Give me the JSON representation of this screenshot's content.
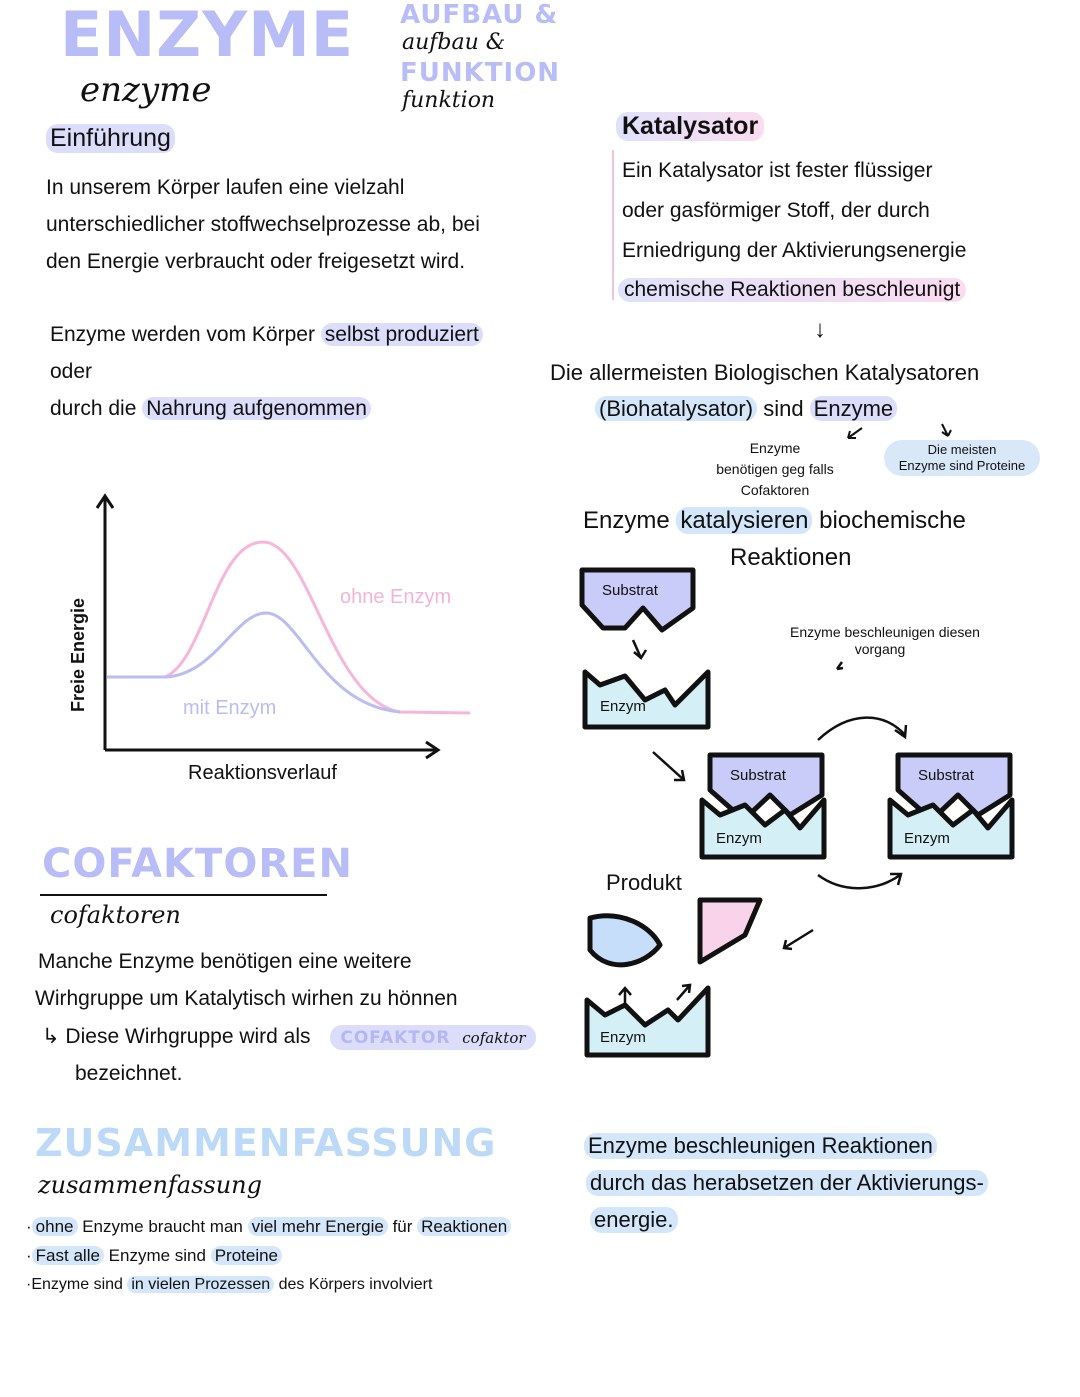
{
  "header": {
    "title_block": "ENZYME",
    "title_script": "enzyme",
    "subtitle_block_1": "AUFBAU &",
    "subtitle_block_2": "FUNKTION",
    "subtitle_script_1": "aufbau &",
    "subtitle_script_2": "funktion"
  },
  "intro": {
    "heading": "Einführung",
    "lines": [
      "In unserem Körper laufen eine vielzahl",
      "unterschiedlicher stoffwechselprozesse ab, bei",
      "den Energie verbraucht oder freigesetzt wird."
    ],
    "production": {
      "l1a": "Enzyme werden vom Körper ",
      "l1b": "selbst produziert",
      "l2": "oder",
      "l3a": "durch die ",
      "l3b": "Nahrung aufgenommen"
    }
  },
  "katalysator": {
    "heading": "Katalysator",
    "lines": [
      "Ein Katalysator ist fester flüssiger",
      "oder gasförmiger Stoff, der durch",
      "Erniedrigung der Aktivierungsenergie",
      "chemische Reaktionen beschleunigt"
    ],
    "arrow": "↓",
    "bio_line1": "Die allermeisten Biologischen Katalysatoren",
    "bio_line2a": "(Biohatalysator)",
    "bio_line2b": " sind ",
    "bio_line2c": "Enzyme",
    "note_left": [
      "Enzyme",
      "benötigen geg falls",
      "Cofaktoren"
    ],
    "note_right": [
      "Die meisten",
      "Enzyme sind Proteine"
    ],
    "catalyse_a": "Enzyme ",
    "catalyse_b": "katalysieren",
    "catalyse_c": " biochemische",
    "catalyse_d": "Reaktionen"
  },
  "energy_diagram": {
    "y_axis_label": "Freie Energie",
    "x_axis_label": "Reaktionsverlauf",
    "curve_without": "ohne Enzym",
    "curve_with": "mit Enzym",
    "color_without": "#f7b6d9",
    "color_with": "#b9bdf2"
  },
  "mechanism": {
    "substrate": "Substrat",
    "enzyme": "Enzym",
    "product": "Produkt",
    "note": [
      "Enzyme beschleunigen diesen",
      "vorgang"
    ],
    "substrate_color": "#c9cbf8",
    "enzyme_color": "#d4f0f6",
    "product_blue": "#c7defa",
    "product_pink": "#f8d3ea"
  },
  "cofaktoren": {
    "heading_block": "COFAKTOREN",
    "heading_script": "cofaktoren",
    "lines": [
      "Manche Enzyme benötigen eine weitere",
      "Wirhgruppe um Katalytisch wirhen zu hönnen",
      "↳ Diese Wirhgruppe wird als",
      "bezeichnet."
    ],
    "term_block": "COFAKTOR",
    "term_script": "cofaktor"
  },
  "summary": {
    "heading_block": "ZUSAMMENFASSUNG",
    "heading_script": "zusammenfassung",
    "b1": [
      "·",
      "ohne",
      " Enzyme braucht man ",
      "viel mehr Energie",
      " für ",
      "Reaktionen"
    ],
    "b2": [
      "·",
      "Fast alle",
      " Enzyme sind ",
      "Proteine"
    ],
    "b3": [
      "·",
      "Enzyme sind ",
      "in vielen Prozessen",
      " des Körpers involviert"
    ],
    "box": [
      "Enzyme beschleunigen Reaktionen",
      "durch das herabsetzen der Aktivierungs-",
      "energie."
    ]
  }
}
